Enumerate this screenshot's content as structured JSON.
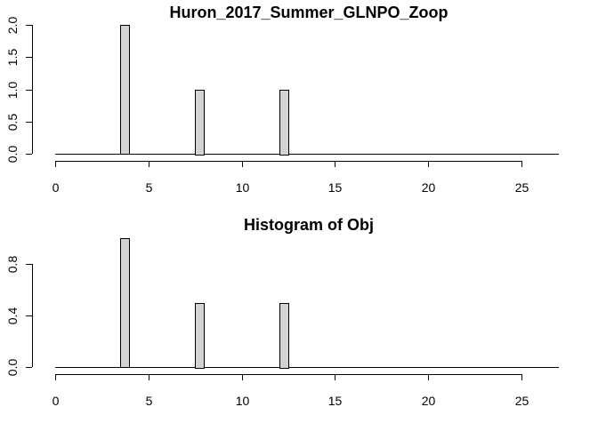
{
  "chart_data": [
    {
      "type": "bar",
      "title": "Huron_2017_Summer_GLNPO_Zoop",
      "xlabel": "",
      "ylabel": "",
      "xlim": [
        0,
        27
      ],
      "ylim": [
        0,
        2
      ],
      "x_ticks": [
        "0",
        "5",
        "10",
        "15",
        "20",
        "25"
      ],
      "y_ticks": [
        "0.0",
        "0.5",
        "1.0",
        "1.5",
        "2.0"
      ],
      "bars": [
        {
          "x_start": 3.5,
          "x_end": 4.0,
          "value": 2
        },
        {
          "x_start": 7.5,
          "x_end": 8.0,
          "value": 1
        },
        {
          "x_start": 12.0,
          "x_end": 12.5,
          "value": 1
        }
      ],
      "bar_fill": "#d3d3d3",
      "bar_stroke": "#000000",
      "grid": false
    },
    {
      "type": "bar",
      "title": "Histogram of Obj",
      "xlabel": "",
      "ylabel": "",
      "xlim": [
        0,
        27
      ],
      "ylim": [
        0,
        1
      ],
      "x_ticks": [
        "0",
        "5",
        "10",
        "15",
        "20",
        "25"
      ],
      "y_ticks": [
        "0.0",
        "0.4",
        "0.8"
      ],
      "bars": [
        {
          "x_start": 3.5,
          "x_end": 4.0,
          "value": 1
        },
        {
          "x_start": 7.5,
          "x_end": 8.0,
          "value": 0.5
        },
        {
          "x_start": 12.0,
          "x_end": 12.5,
          "value": 0.5
        }
      ],
      "bar_fill": "#d3d3d3",
      "bar_stroke": "#000000",
      "grid": false
    }
  ]
}
